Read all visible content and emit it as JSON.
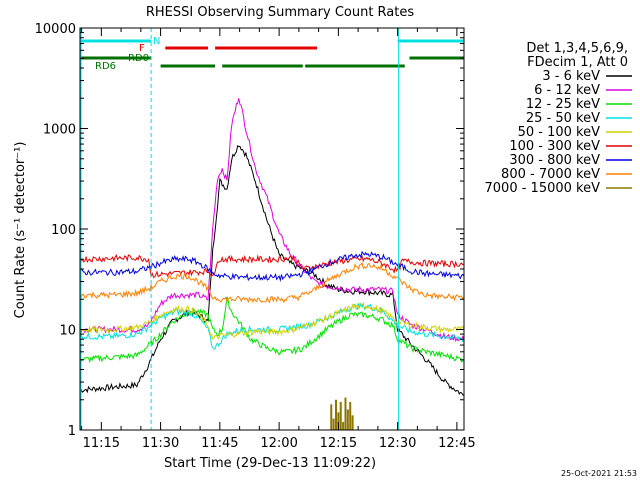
{
  "chart_data": {
    "type": "line",
    "title": "RHESSI Observing Summary Count Rates",
    "xlabel": "Start Time (29-Dec-13 11:09:22)",
    "ylabel": "Count Rate (s⁻¹ detector⁻¹)",
    "yscale": "log",
    "ylim": [
      1,
      10000
    ],
    "xlim_minutes": [
      11.16,
      12.78
    ],
    "x_ticks": [
      "11:15",
      "11:30",
      "11:45",
      "12:00",
      "12:15",
      "12:30",
      "12:45"
    ],
    "y_ticks": [
      "1",
      "10",
      "100",
      "1000",
      "10000"
    ],
    "timestamp": "25-Oct-2021 21:53",
    "legend": {
      "header": [
        "Det 1,3,4,5,6,9,",
        "FDecim 1, Att 0"
      ],
      "placement": "right",
      "entries": [
        {
          "label": "3 - 6 keV",
          "color": "#000000"
        },
        {
          "label": "6 - 12 keV",
          "color": "#e000e0"
        },
        {
          "label": "12 - 25 keV",
          "color": "#00e000"
        },
        {
          "label": "25 - 50 keV",
          "color": "#00e0e0"
        },
        {
          "label": "50 - 100 keV",
          "color": "#d0d000"
        },
        {
          "label": "100 - 300 keV",
          "color": "#e00000"
        },
        {
          "label": "300 - 800 keV",
          "color": "#0000e0"
        },
        {
          "label": "800 - 7000 keV",
          "color": "#ff8000"
        },
        {
          "label": "7000 - 15000 keV",
          "color": "#8b7500"
        }
      ]
    },
    "flags": [
      {
        "label": "N",
        "color": "#00e0e0",
        "segments": [
          [
            11.16,
            11.46
          ],
          [
            12.5,
            12.78
          ]
        ]
      },
      {
        "label": "F",
        "color": "#e00000",
        "segments": [
          [
            11.52,
            11.7
          ],
          [
            11.73,
            12.16
          ]
        ]
      },
      {
        "label": "RD0",
        "color": "#007000",
        "segments": [
          [
            11.16,
            11.46
          ],
          [
            12.55,
            12.78
          ]
        ]
      },
      {
        "label": "RD6",
        "color": "#007000",
        "segments": [
          [
            11.5,
            11.73
          ],
          [
            11.76,
            12.1
          ],
          [
            12.11,
            12.53
          ]
        ]
      }
    ],
    "series": [
      {
        "name": "3 - 6 keV",
        "color": "#000000",
        "x": [
          11.16,
          11.4,
          11.45,
          11.5,
          11.55,
          11.62,
          11.66,
          11.7,
          11.72,
          11.75,
          11.78,
          11.8,
          11.83,
          11.86,
          11.9,
          11.95,
          12.0,
          12.05,
          12.1,
          12.15,
          12.2,
          12.25,
          12.3,
          12.36,
          12.42,
          12.48,
          12.5,
          12.56,
          12.62,
          12.7,
          12.78
        ],
        "y": [
          2.5,
          2.8,
          4.5,
          8,
          12,
          15,
          14,
          12,
          60,
          300,
          250,
          500,
          700,
          550,
          300,
          120,
          55,
          45,
          40,
          35,
          28,
          25,
          24,
          24,
          23,
          22,
          10,
          7,
          5,
          3,
          2.2
        ]
      },
      {
        "name": "6 - 12 keV",
        "color": "#e000e0",
        "x": [
          11.16,
          11.4,
          11.45,
          11.5,
          11.55,
          11.62,
          11.66,
          11.7,
          11.72,
          11.74,
          11.76,
          11.78,
          11.8,
          11.83,
          11.86,
          11.9,
          11.95,
          12.0,
          12.05,
          12.1,
          12.15,
          12.2,
          12.25,
          12.3,
          12.36,
          12.42,
          12.48,
          12.5,
          12.56,
          12.62,
          12.7,
          12.78
        ],
        "y": [
          10,
          10,
          11,
          18,
          22,
          22,
          22,
          20,
          100,
          320,
          400,
          300,
          1100,
          2100,
          1000,
          400,
          200,
          90,
          55,
          40,
          30,
          27,
          26,
          25,
          25,
          25,
          24,
          14,
          11,
          10,
          8.5,
          8
        ]
      },
      {
        "name": "12 - 25 keV",
        "color": "#00e000",
        "x": [
          11.16,
          11.4,
          11.48,
          11.55,
          11.62,
          11.66,
          11.7,
          11.72,
          11.74,
          11.76,
          11.78,
          11.8,
          11.83,
          11.88,
          11.95,
          12.0,
          12.05,
          12.1,
          12.15,
          12.2,
          12.25,
          12.3,
          12.36,
          12.42,
          12.48,
          12.5,
          12.56,
          12.62,
          12.7,
          12.78
        ],
        "y": [
          5,
          5.5,
          8,
          12,
          15,
          15,
          14,
          10,
          9,
          10,
          20,
          15,
          12,
          8,
          6.5,
          6,
          6,
          6.5,
          8,
          10,
          12,
          14,
          14,
          13,
          11,
          8,
          6.5,
          6,
          5.5,
          5
        ]
      },
      {
        "name": "25 - 50 keV",
        "color": "#00e0e0",
        "x": [
          11.16,
          11.3,
          11.4,
          11.46,
          11.5,
          11.56,
          11.62,
          11.66,
          11.7,
          11.72,
          11.74,
          11.78,
          11.85,
          11.92,
          12.0,
          12.06,
          12.12,
          12.2,
          12.26,
          12.32,
          12.38,
          12.44,
          12.5,
          12.56,
          12.62,
          12.7,
          12.78
        ],
        "y": [
          8.5,
          8.5,
          9,
          11,
          13,
          15,
          15,
          13,
          10,
          6.5,
          7,
          9,
          10,
          10,
          10,
          10.5,
          11,
          13,
          15,
          17,
          17,
          15,
          11,
          9.5,
          9,
          8.5,
          8
        ]
      },
      {
        "name": "50 - 100 keV",
        "color": "#d0d000",
        "x": [
          11.16,
          11.3,
          11.4,
          11.46,
          11.5,
          11.56,
          11.62,
          11.66,
          11.7,
          11.72,
          11.74,
          11.8,
          11.9,
          12.0,
          12.06,
          12.12,
          12.2,
          12.26,
          12.32,
          12.38,
          12.44,
          12.5,
          12.56,
          12.62,
          12.7,
          12.78
        ],
        "y": [
          10,
          10,
          10.5,
          12,
          14,
          16,
          16,
          14,
          11,
          8,
          8.5,
          9,
          9.5,
          9.5,
          10,
          11,
          13,
          15,
          17,
          17,
          15,
          12,
          11,
          10.5,
          10,
          10
        ]
      },
      {
        "name": "100 - 300 keV",
        "color": "#e00000",
        "x": [
          11.16,
          11.4,
          11.45,
          11.46,
          11.55,
          11.7,
          11.73,
          11.74,
          11.8,
          11.9,
          12.0,
          12.06,
          12.1,
          12.15,
          12.2,
          12.26,
          12.32,
          12.38,
          12.44,
          12.5,
          12.52,
          12.6,
          12.7,
          12.78
        ],
        "y": [
          50,
          52,
          50,
          35,
          36,
          38,
          35,
          50,
          50,
          50,
          50,
          52,
          40,
          42,
          45,
          48,
          50,
          50,
          45,
          38,
          48,
          46,
          45,
          45
        ]
      },
      {
        "name": "300 - 800 keV",
        "color": "#0000e0",
        "x": [
          11.16,
          11.3,
          11.4,
          11.46,
          11.5,
          11.56,
          11.62,
          11.66,
          11.7,
          11.72,
          11.76,
          11.85,
          11.95,
          12.02,
          12.08,
          12.14,
          12.2,
          12.26,
          12.32,
          12.38,
          12.44,
          12.5,
          12.56,
          12.62,
          12.7,
          12.78
        ],
        "y": [
          37,
          37,
          38,
          42,
          46,
          50,
          50,
          46,
          40,
          36,
          34,
          33,
          33,
          33,
          35,
          39,
          45,
          50,
          55,
          56,
          52,
          44,
          38,
          36,
          35,
          34
        ]
      },
      {
        "name": "800 - 7000 keV",
        "color": "#ff8000",
        "x": [
          11.16,
          11.3,
          11.4,
          11.46,
          11.5,
          11.56,
          11.62,
          11.66,
          11.7,
          11.72,
          11.76,
          11.85,
          11.95,
          12.02,
          12.08,
          12.14,
          12.2,
          12.26,
          12.32,
          12.38,
          12.44,
          12.5,
          12.56,
          12.62,
          12.7,
          12.78
        ],
        "y": [
          22,
          22,
          23,
          26,
          30,
          34,
          34,
          30,
          25,
          21,
          20,
          20,
          20,
          20,
          21,
          24,
          30,
          36,
          42,
          44,
          40,
          32,
          25,
          22,
          21,
          21
        ]
      },
      {
        "name": "7000 - 15000 keV",
        "color": "#8b7500",
        "x": [
          12.22,
          12.23,
          12.24,
          12.25,
          12.26,
          12.27,
          12.28,
          12.29,
          12.3,
          12.31
        ],
        "y": [
          1.8,
          1.3,
          2.0,
          1.5,
          1.9,
          1.2,
          2.1,
          1.6,
          1.9,
          1.4
        ]
      }
    ]
  }
}
